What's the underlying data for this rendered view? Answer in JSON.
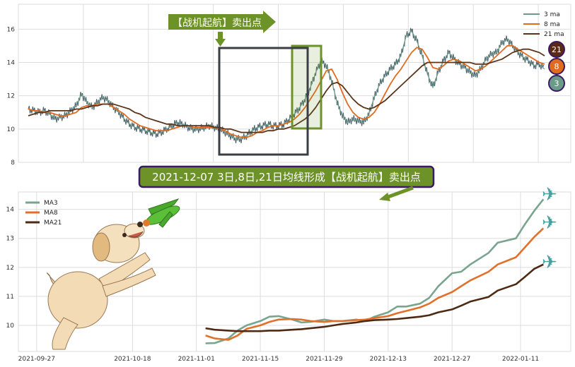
{
  "chart_data": [
    {
      "type": "line",
      "panel": "top",
      "title": "",
      "xlabel": "",
      "ylabel": "",
      "ylim": [
        8,
        17.5
      ],
      "yticks": [
        8,
        10,
        12,
        14,
        16
      ],
      "grid": true,
      "legend": {
        "placement": "top-right",
        "entries": [
          "3 ma",
          "8 ma",
          "21 ma"
        ]
      },
      "annotation": "【战机起航】卖出点",
      "badges": [
        "21",
        "8",
        "3"
      ],
      "series": [
        {
          "name": "3 ma",
          "color": "#6b9a88",
          "values": [
            11.2,
            11.1,
            11.0,
            11.1,
            10.9,
            10.6,
            10.7,
            10.8,
            11.1,
            11.4,
            12.1,
            11.6,
            11.3,
            11.6,
            11.9,
            11.7,
            11.3,
            11.0,
            10.6,
            10.3,
            10.1,
            10.0,
            9.9,
            9.8,
            9.7,
            9.8,
            10.0,
            10.2,
            10.4,
            10.3,
            10.1,
            10.0,
            10.0,
            10.1,
            10.2,
            10.1,
            10.0,
            9.8,
            9.6,
            9.4,
            9.4,
            9.6,
            9.9,
            10.1,
            10.2,
            10.3,
            10.2,
            10.2,
            10.3,
            10.6,
            10.9,
            11.3,
            11.8,
            12.5,
            13.4,
            14.1,
            13.8,
            12.9,
            11.6,
            10.8,
            10.4,
            10.6,
            10.5,
            10.4,
            10.9,
            11.9,
            12.7,
            13.2,
            13.6,
            13.9,
            14.4,
            15.6,
            15.9,
            15.3,
            14.4,
            13.3,
            12.5,
            13.4,
            14.1,
            14.6,
            14.2,
            13.9,
            13.7,
            13.4,
            13.2,
            13.6,
            14.2,
            14.5,
            14.6,
            15.2,
            15.4,
            15.0,
            14.6,
            14.3,
            14.1,
            13.8,
            13.9,
            13.6
          ]
        },
        {
          "name": "8 ma",
          "color": "#e06b1f",
          "values": [
            11.2,
            11.1,
            11.1,
            11.0,
            11.0,
            10.9,
            10.8,
            10.8,
            10.9,
            11.0,
            11.3,
            11.4,
            11.4,
            11.5,
            11.5,
            11.5,
            11.3,
            11.1,
            10.9,
            10.6,
            10.4,
            10.2,
            10.1,
            10.0,
            9.9,
            9.9,
            9.9,
            10.0,
            10.1,
            10.2,
            10.2,
            10.1,
            10.1,
            10.1,
            10.1,
            10.1,
            10.0,
            9.9,
            9.7,
            9.6,
            9.5,
            9.5,
            9.6,
            9.8,
            9.9,
            10.1,
            10.2,
            10.2,
            10.3,
            10.4,
            10.6,
            10.9,
            11.3,
            11.8,
            12.3,
            12.9,
            13.5,
            13.6,
            13.0,
            12.2,
            11.5,
            11.0,
            10.7,
            10.6,
            10.7,
            11.0,
            11.5,
            12.1,
            12.7,
            13.2,
            13.6,
            14.1,
            14.6,
            14.9,
            14.8,
            14.3,
            13.7,
            13.6,
            13.8,
            14.1,
            14.2,
            14.1,
            13.9,
            13.7,
            13.5,
            13.6,
            13.8,
            14.1,
            14.4,
            14.7,
            15.0,
            15.0,
            14.8,
            14.6,
            14.4,
            14.2,
            14.0,
            13.9
          ]
        },
        {
          "name": "21 ma",
          "color": "#5a3418",
          "values": [
            10.8,
            10.9,
            11.0,
            11.0,
            11.1,
            11.1,
            11.1,
            11.1,
            11.1,
            11.2,
            11.2,
            11.3,
            11.4,
            11.4,
            11.5,
            11.5,
            11.5,
            11.4,
            11.3,
            11.2,
            11.0,
            10.9,
            10.7,
            10.6,
            10.5,
            10.4,
            10.3,
            10.3,
            10.2,
            10.2,
            10.2,
            10.2,
            10.2,
            10.2,
            10.2,
            10.1,
            10.1,
            10.0,
            10.0,
            9.9,
            9.8,
            9.8,
            9.8,
            9.8,
            9.8,
            9.9,
            9.9,
            10.0,
            10.0,
            10.1,
            10.2,
            10.4,
            10.6,
            10.9,
            11.3,
            11.8,
            12.3,
            12.7,
            12.8,
            12.6,
            12.2,
            11.8,
            11.5,
            11.3,
            11.2,
            11.3,
            11.5,
            11.7,
            12.0,
            12.3,
            12.6,
            12.9,
            13.2,
            13.5,
            13.8,
            14.0,
            14.0,
            14.0,
            14.0,
            14.0,
            14.0,
            14.0,
            14.0,
            14.0,
            13.9,
            13.9,
            13.9,
            14.0,
            14.1,
            14.2,
            14.4,
            14.6,
            14.7,
            14.8,
            14.8,
            14.7,
            14.6,
            14.4
          ]
        }
      ]
    },
    {
      "type": "line",
      "panel": "bottom",
      "title": "2021-12-07 3日,8日,21日均线形成【战机起航】卖出点",
      "xlabel": "",
      "ylabel": "",
      "ylim": [
        9.1,
        14.6
      ],
      "yticks": [
        10,
        11,
        12,
        13,
        14
      ],
      "xlim": [
        "2021-09-23",
        "2022-01-22"
      ],
      "xticks": [
        "2021-09-27",
        "2021-10-18",
        "2021-11-01",
        "2021-11-15",
        "2021-11-29",
        "2021-12-13",
        "2021-12-27",
        "2022-01-11"
      ],
      "grid": true,
      "legend": {
        "placement": "top-left",
        "entries": [
          "MA3",
          "MA8",
          "MA21"
        ]
      },
      "x": [
        "2021-11-03",
        "2021-11-05",
        "2021-11-08",
        "2021-11-10",
        "2021-11-12",
        "2021-11-15",
        "2021-11-17",
        "2021-11-19",
        "2021-11-22",
        "2021-11-24",
        "2021-11-26",
        "2021-11-29",
        "2021-12-01",
        "2021-12-03",
        "2021-12-06",
        "2021-12-08",
        "2021-12-10",
        "2021-12-13",
        "2021-12-15",
        "2021-12-17",
        "2021-12-20",
        "2021-12-22",
        "2021-12-24",
        "2021-12-27",
        "2021-12-29",
        "2021-12-31",
        "2022-01-04",
        "2022-01-06",
        "2022-01-10",
        "2022-01-12",
        "2022-01-14",
        "2022-01-16"
      ],
      "series": [
        {
          "name": "MA3",
          "color": "#79a58e",
          "values": [
            9.38,
            9.39,
            9.55,
            9.82,
            10.0,
            10.15,
            10.3,
            10.32,
            10.2,
            10.1,
            10.12,
            10.2,
            10.15,
            10.15,
            10.2,
            10.15,
            10.3,
            10.45,
            10.65,
            10.65,
            10.75,
            10.95,
            11.35,
            11.8,
            11.85,
            12.1,
            12.5,
            12.85,
            13.0,
            13.5,
            13.95,
            14.35
          ]
        },
        {
          "name": "MA8",
          "color": "#e1712a",
          "values": [
            9.65,
            9.55,
            9.5,
            9.65,
            9.88,
            10.0,
            10.12,
            10.2,
            10.22,
            10.2,
            10.15,
            10.12,
            10.15,
            10.15,
            10.18,
            10.2,
            10.25,
            10.32,
            10.42,
            10.5,
            10.62,
            10.75,
            10.95,
            11.15,
            11.35,
            11.55,
            11.85,
            12.1,
            12.35,
            12.7,
            13.05,
            13.35
          ]
        },
        {
          "name": "MA21",
          "color": "#4e2a15",
          "values": [
            9.9,
            9.85,
            9.82,
            9.8,
            9.8,
            9.8,
            9.82,
            9.82,
            9.85,
            9.87,
            9.9,
            9.95,
            10.0,
            10.05,
            10.1,
            10.15,
            10.18,
            10.2,
            10.22,
            10.25,
            10.3,
            10.35,
            10.45,
            10.55,
            10.68,
            10.82,
            10.98,
            11.2,
            11.42,
            11.68,
            11.95,
            12.1
          ]
        }
      ]
    }
  ]
}
